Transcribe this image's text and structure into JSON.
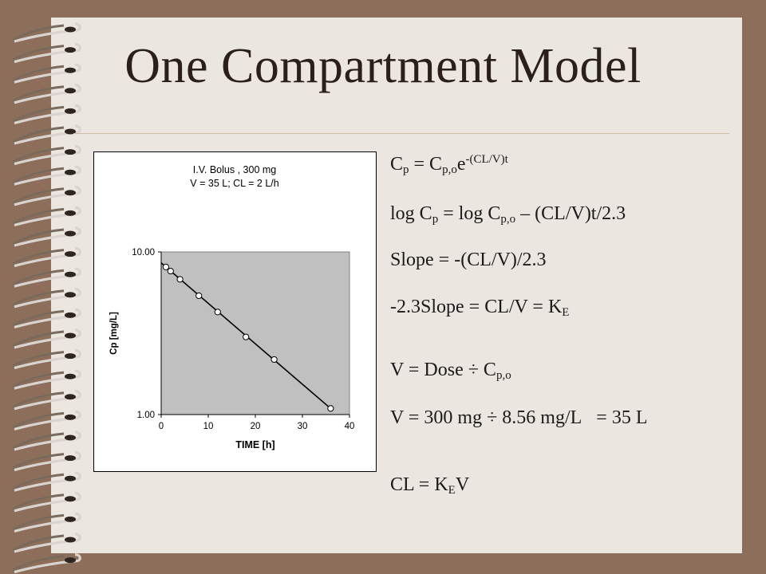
{
  "slide": {
    "title": "One Compartment Model",
    "equations": {
      "e1": {
        "a": "C",
        "b": "p",
        "c": " = C",
        "d": "p,o",
        "e": "e",
        "f": "-(CL/V)t"
      },
      "e2": {
        "a": "log C",
        "b": "p",
        "c": " = log C",
        "d": "p,o",
        "e": " – (CL/V)t/2.3"
      },
      "e3": {
        "a": "Slope = -(CL/V)/2.3"
      },
      "e4": {
        "a": "-2.3Slope = CL/V = K",
        "b": "E"
      },
      "e5": {
        "a": "V = Dose ÷ C",
        "b": "p,o"
      },
      "e6": {
        "a": "V = 300 mg ÷ 8.56 mg/L",
        "b": "= 35 L"
      },
      "e7": {
        "a": "CL = K",
        "b": "E",
        "c": "V"
      }
    }
  },
  "chart_data": {
    "type": "scatter",
    "title": "I.V. Bolus , 300 mg",
    "subtitle": "V = 35 L; CL = 2 L/h",
    "xlabel": "TIME [h]",
    "ylabel": "Cp [mg/L]",
    "xlim": [
      0,
      40
    ],
    "ylim": [
      1,
      10
    ],
    "yscale": "log",
    "xticks": [
      "0",
      "10",
      "20",
      "30",
      "40"
    ],
    "yticks": [
      "10.00",
      "1.00"
    ],
    "grid": false,
    "plot_background": "#c0c0c0",
    "points": [
      {
        "x": 1,
        "y": 8.08
      },
      {
        "x": 2,
        "y": 7.62
      },
      {
        "x": 4,
        "y": 6.79
      },
      {
        "x": 8,
        "y": 5.38
      },
      {
        "x": 12,
        "y": 4.27
      },
      {
        "x": 18,
        "y": 3.0
      },
      {
        "x": 24,
        "y": 2.18
      },
      {
        "x": 36,
        "y": 1.09
      }
    ],
    "fit_line": {
      "x": [
        0,
        36
      ],
      "y": [
        8.56,
        1.09
      ]
    }
  }
}
